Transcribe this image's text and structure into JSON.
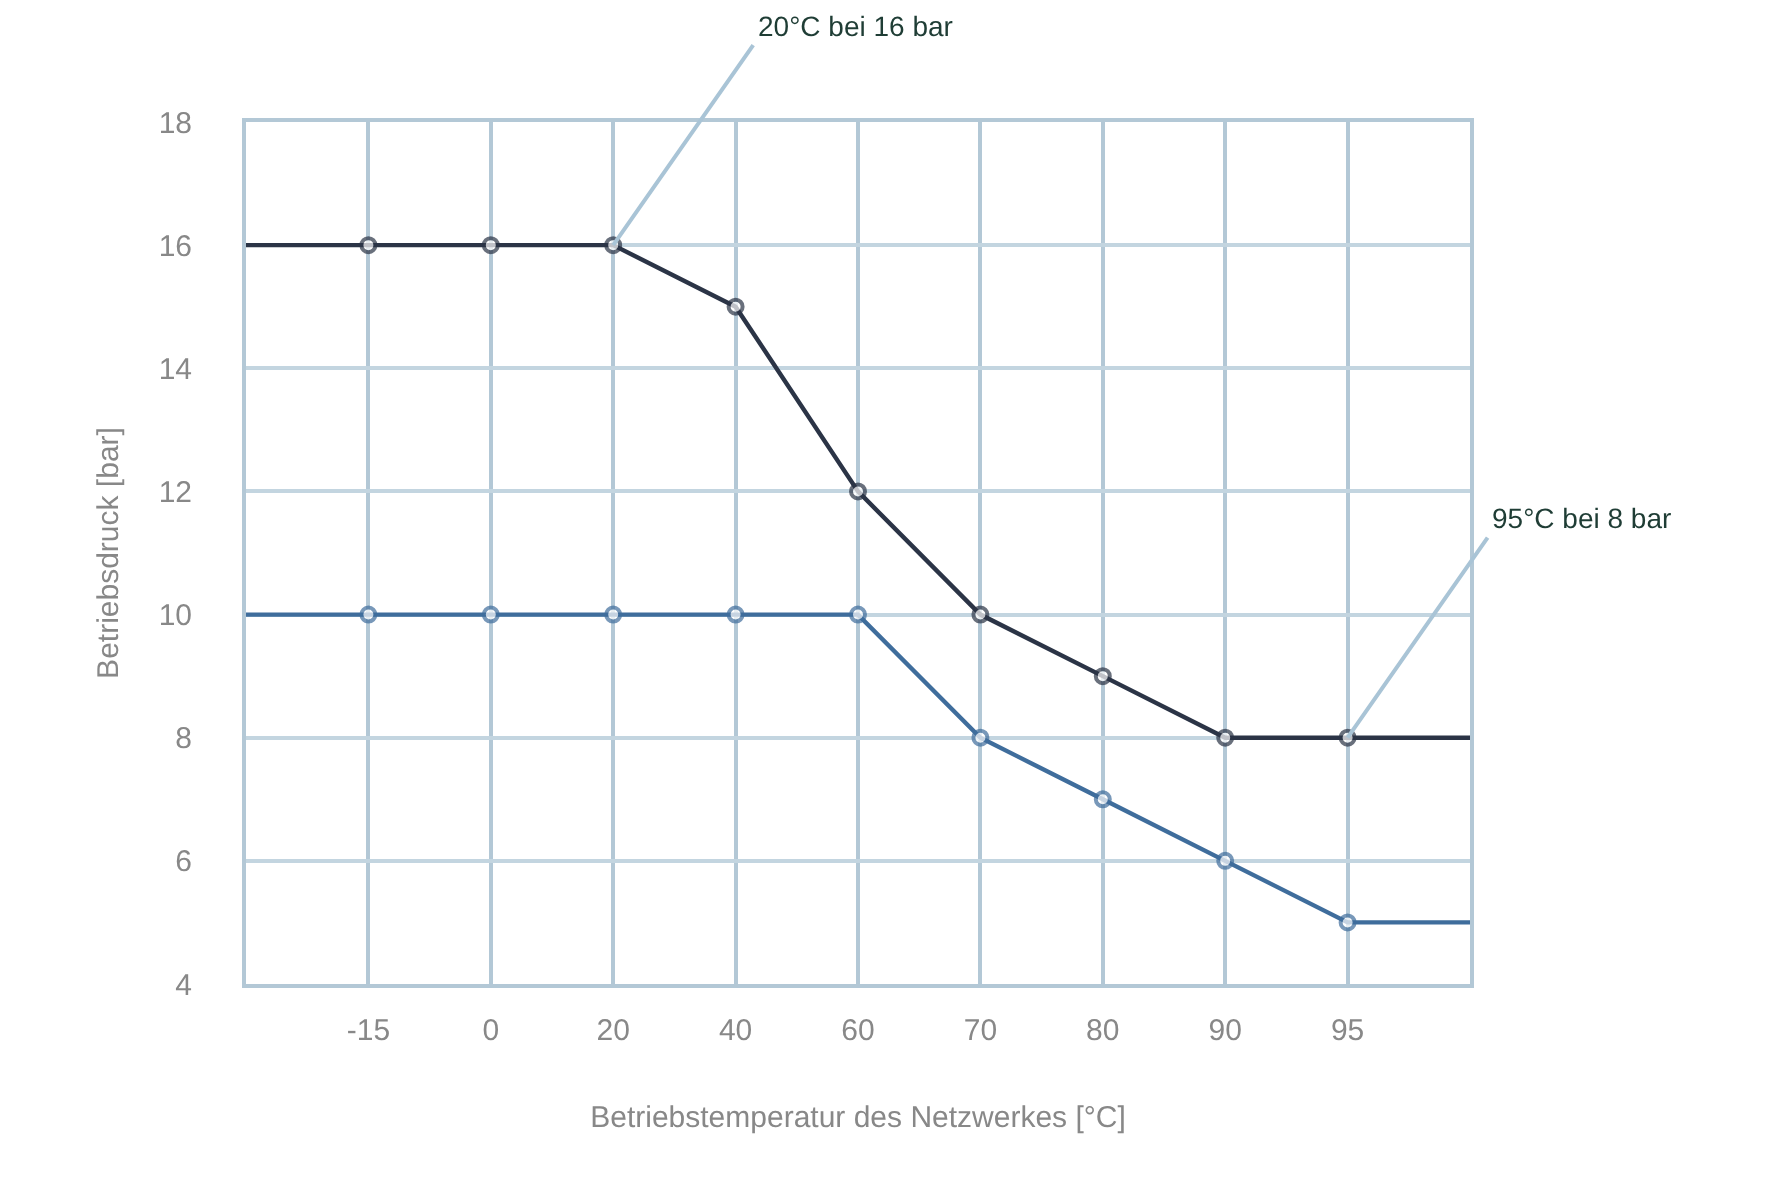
{
  "chart_data": {
    "type": "line",
    "xlabel": "Betriebstemperatur des Netzwerkes [°C]",
    "ylabel": "Betriebsdruck [bar]",
    "categories": [
      null,
      "-15",
      "0",
      "20",
      "40",
      "60",
      "70",
      "80",
      "90",
      "95",
      null
    ],
    "series": [
      {
        "color": "#2b3446",
        "values": [
          16,
          16,
          16,
          16,
          15,
          12,
          10,
          9,
          8,
          8,
          8
        ]
      },
      {
        "color": "#3f6d9c",
        "values": [
          10,
          10,
          10,
          10,
          10,
          10,
          8,
          7,
          6,
          5,
          5
        ]
      }
    ],
    "ylim": [
      4,
      18
    ],
    "yticks": [
      4,
      6,
      8,
      10,
      12,
      14,
      16,
      18
    ],
    "grid": true,
    "marker": "circle",
    "line_style": "solid",
    "annotations": [
      {
        "text": "20°C bei 16 bar",
        "x": "20",
        "y": 16
      },
      {
        "text": "95°C bei 8 bar",
        "x": "95",
        "y": 8
      }
    ]
  }
}
